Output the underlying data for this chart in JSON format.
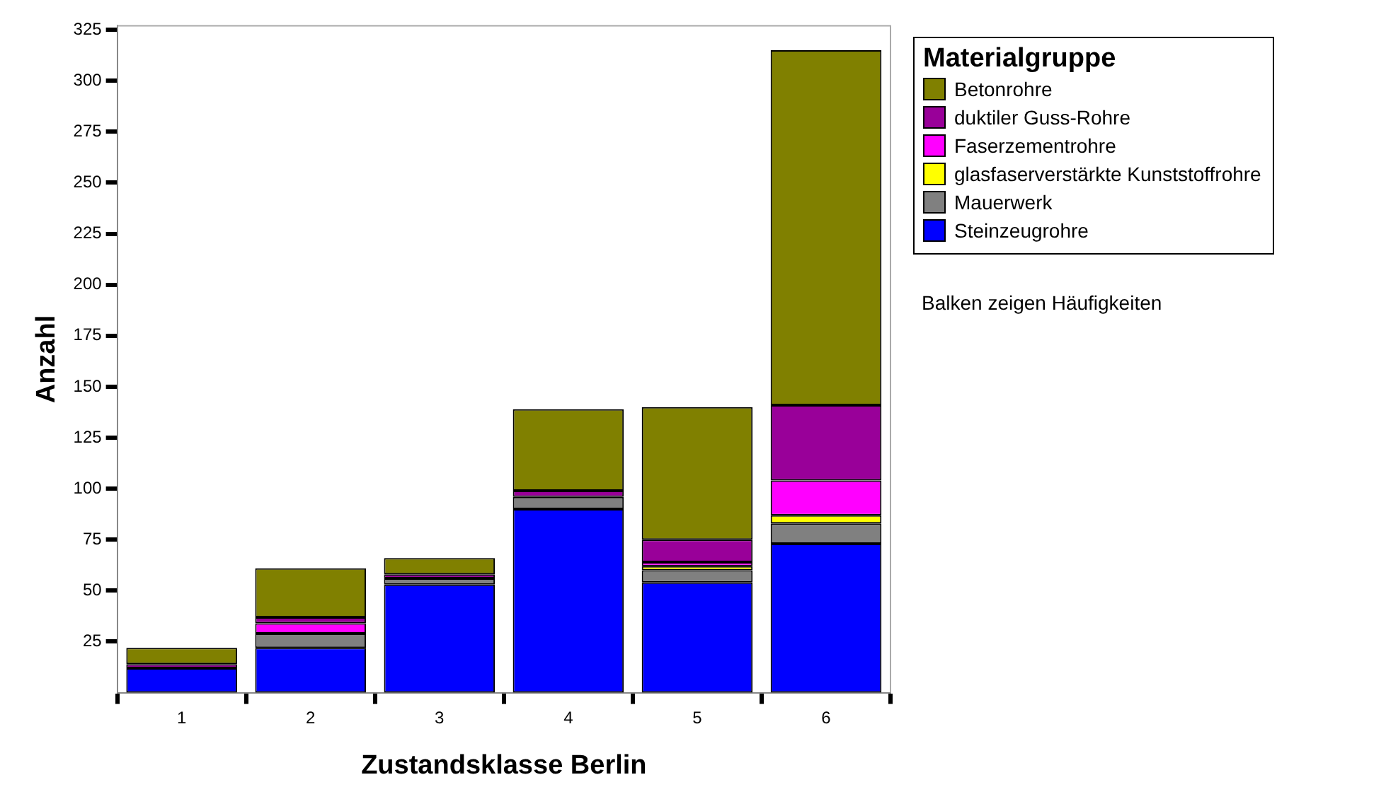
{
  "chart_data": {
    "type": "bar",
    "stacked": true,
    "xlabel": "Zustandsklasse Berlin",
    "ylabel": "Anzahl",
    "legend_title": "Materialgruppe",
    "legend": "right",
    "grid": false,
    "categories": [
      "1",
      "2",
      "3",
      "4",
      "5",
      "6"
    ],
    "series": [
      {
        "name": "Steinzeugrohre",
        "color": "#0000ff",
        "values": [
          12,
          22,
          53,
          90,
          54,
          73
        ]
      },
      {
        "name": "Mauerwerk",
        "color": "#808080",
        "values": [
          null,
          7,
          3,
          6,
          6,
          10
        ]
      },
      {
        "name": "glasfaserverstärkte Kunststoffrohre",
        "color": "#ffff00",
        "values": [
          null,
          null,
          null,
          null,
          2,
          4
        ]
      },
      {
        "name": "Faserzementrohre",
        "color": "#ff00ff",
        "values": [
          null,
          5,
          null,
          null,
          2,
          17
        ]
      },
      {
        "name": "duktiler Guss-Rohre",
        "color": "#990099",
        "values": [
          2,
          3,
          2,
          3,
          11,
          37
        ]
      },
      {
        "name": "Betonrohre",
        "color": "#808000",
        "values": [
          8,
          24,
          8,
          40,
          65,
          174
        ]
      }
    ],
    "ylim": [
      0,
      327
    ],
    "yticks": [
      25,
      50,
      75,
      100,
      125,
      150,
      175,
      200,
      225,
      250,
      275,
      300,
      325
    ],
    "annotations": [
      "Balken zeigen Häufigkeiten"
    ]
  }
}
